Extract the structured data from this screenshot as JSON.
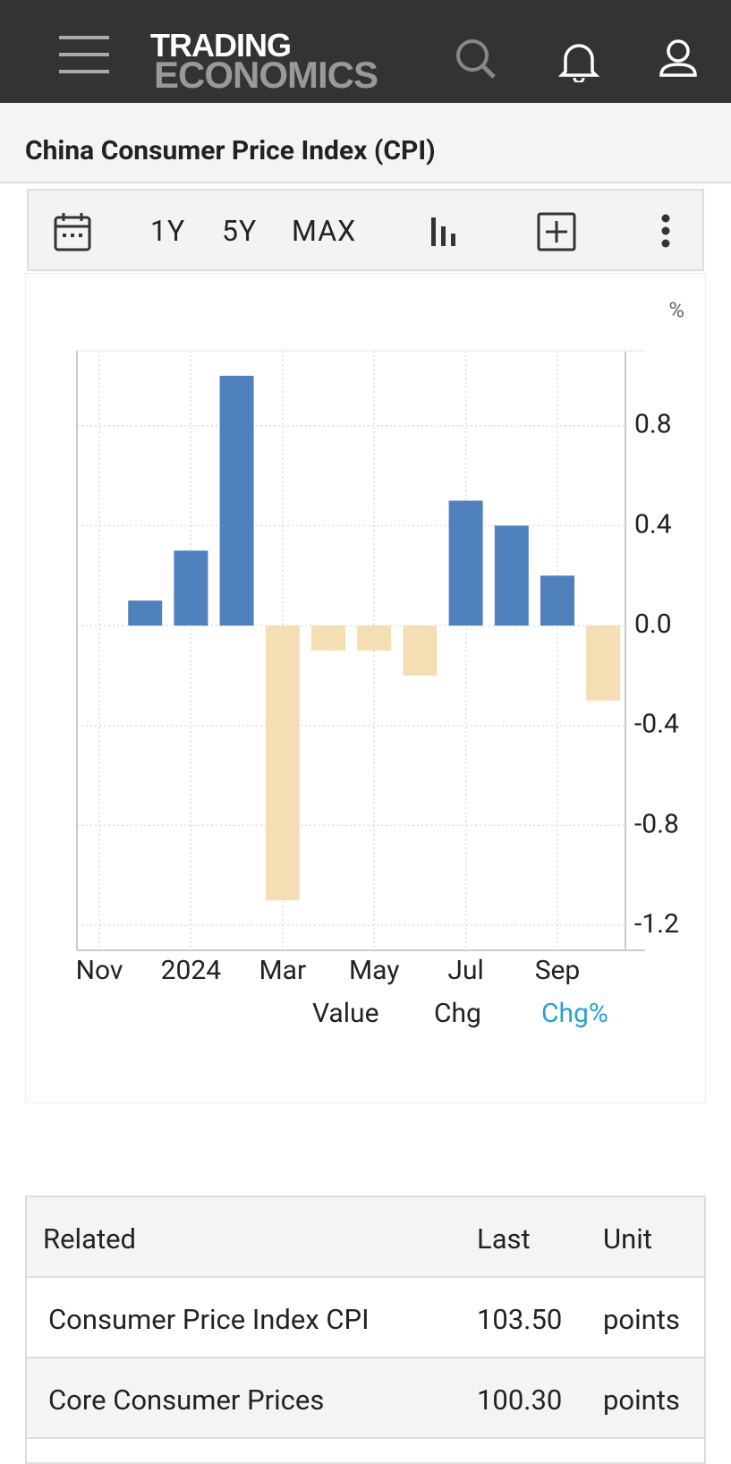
{
  "header": {
    "logo_top": "TRADING",
    "logo_bottom": "ECONOMICS"
  },
  "page_title": "China Consumer Price Index (CPI)",
  "toolbar": [
    "1Y",
    "5Y",
    "MAX"
  ],
  "chart_data": {
    "type": "bar",
    "unit": "%",
    "categories": [
      "Nov",
      null,
      "2024",
      null,
      "Mar",
      null,
      "May",
      null,
      "Jul",
      null,
      "Sep",
      null
    ],
    "values": [
      null,
      0.1,
      0.3,
      1.0,
      -1.1,
      -0.1,
      -0.1,
      -0.2,
      0.5,
      0.4,
      0.2,
      -0.3
    ],
    "positive_color": "#4f81bd",
    "negative_color": "#f5deb3",
    "ylim": [
      -1.3,
      1.1
    ],
    "yticks": [
      0.8,
      0.4,
      {
        "value": 0,
        "label": "0.0"
      },
      -0.4,
      -0.8,
      -1.2
    ],
    "grid": true,
    "legend": [
      "Value",
      "Chg",
      "Chg%"
    ],
    "active_legend": 2,
    "active_color": "#2a9fd6"
  },
  "table": {
    "columns": [
      "Related",
      "Last",
      "Unit"
    ],
    "rows": [
      [
        "Consumer Price Index CPI",
        "103.50",
        "points"
      ],
      [
        "Core Consumer Prices",
        "100.30",
        "points"
      ]
    ]
  }
}
